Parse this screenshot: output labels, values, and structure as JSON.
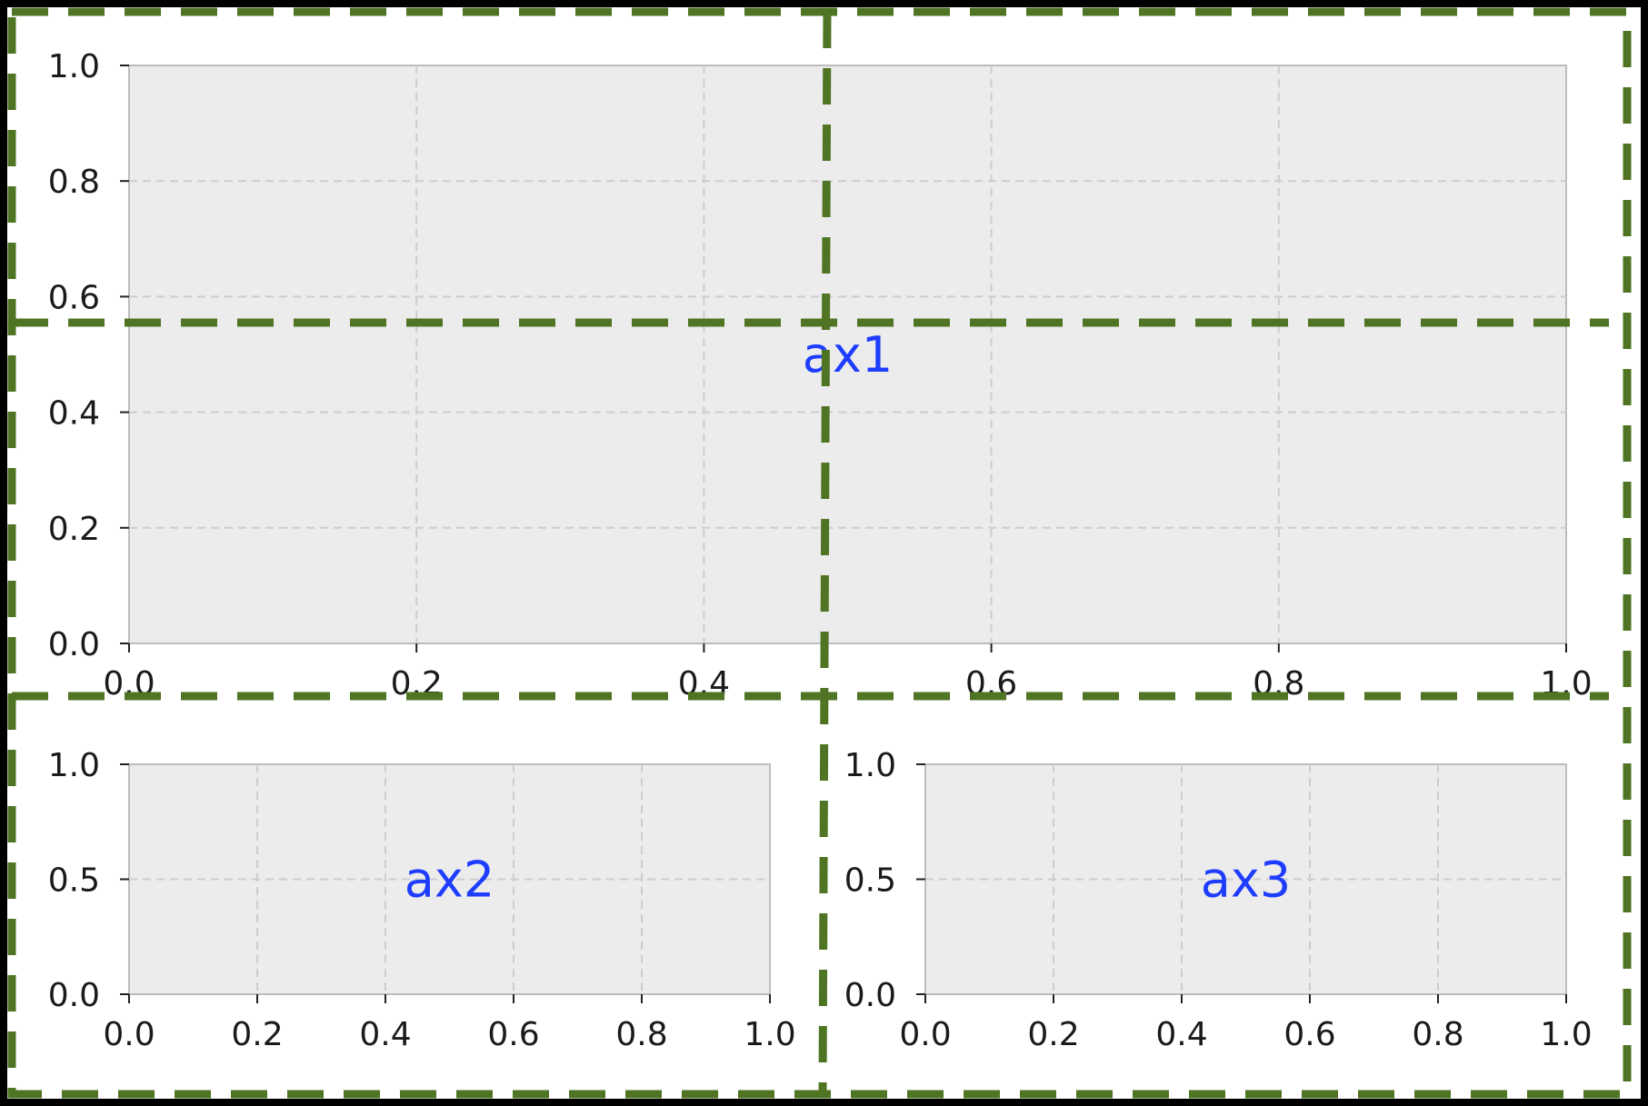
{
  "colors": {
    "page_background": "#000000",
    "figure_background": "#ffffff",
    "axes_face": "#ececec",
    "grid": "#cdcdcd",
    "spine": "#bdbdbd",
    "tick_text": "#1a1a1a",
    "axes_label": "#1f3dff",
    "layout_guide": "#4f7423"
  },
  "chart_data": [
    {
      "type": "line",
      "axes": "ax1",
      "label": "ax1",
      "xlim": [
        0.0,
        1.0
      ],
      "ylim": [
        0.0,
        1.0
      ],
      "xticks": [
        "0.0",
        "0.2",
        "0.4",
        "0.6",
        "0.8",
        "1.0"
      ],
      "yticks": [
        "0.0",
        "0.2",
        "0.4",
        "0.6",
        "0.8",
        "1.0"
      ],
      "grid": true,
      "grid_style": "dashed",
      "series": []
    },
    {
      "type": "line",
      "axes": "ax2",
      "label": "ax2",
      "xlim": [
        0.0,
        1.0
      ],
      "ylim": [
        0.0,
        1.0
      ],
      "xticks": [
        "0.0",
        "0.2",
        "0.4",
        "0.6",
        "0.8",
        "1.0"
      ],
      "yticks": [
        "0.0",
        "0.5",
        "1.0"
      ],
      "grid": true,
      "grid_style": "dashed",
      "series": []
    },
    {
      "type": "line",
      "axes": "ax3",
      "label": "ax3",
      "xlim": [
        0.0,
        1.0
      ],
      "ylim": [
        0.0,
        1.0
      ],
      "xticks": [
        "0.0",
        "0.2",
        "0.4",
        "0.6",
        "0.8",
        "1.0"
      ],
      "yticks": [
        "0.0",
        "0.5",
        "1.0"
      ],
      "grid": true,
      "grid_style": "dashed",
      "series": []
    }
  ]
}
